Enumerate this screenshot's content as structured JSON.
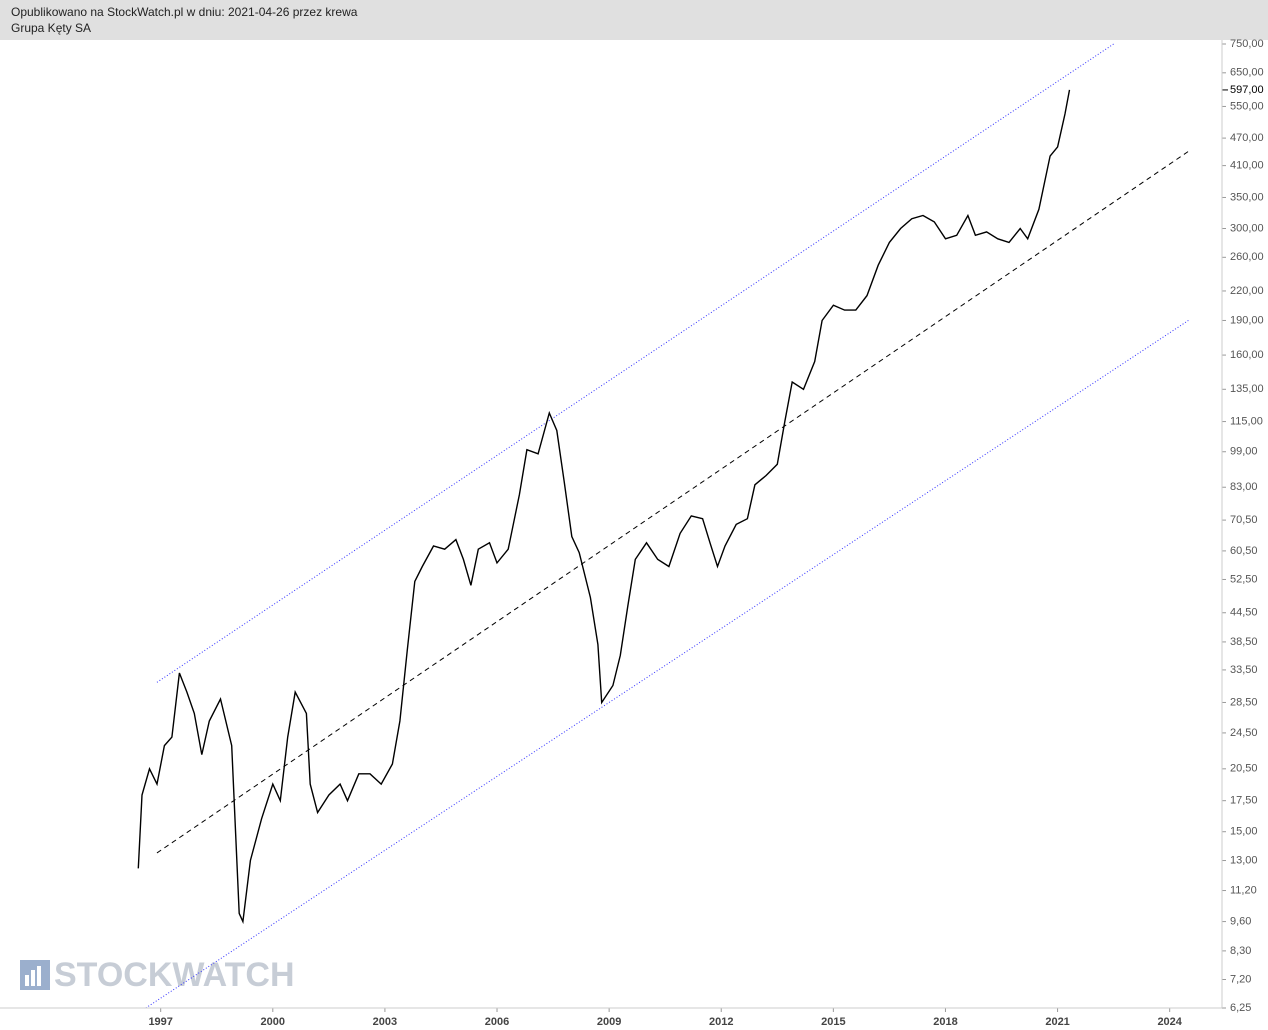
{
  "header": {
    "published": "Opublikowano na StockWatch.pl w dniu: 2021-04-26 przez krewa",
    "instrument": "Grupa Kęty SA"
  },
  "watermark": "STOCKWATCH",
  "chart_data": {
    "type": "line",
    "log_scale": true,
    "xlim": [
      1992.7,
      2025.4
    ],
    "ylim": [
      6.25,
      750
    ],
    "xticks": [
      1997,
      2000,
      2003,
      2006,
      2009,
      2012,
      2015,
      2018,
      2021,
      2024
    ],
    "yticks": [
      {
        "value": 750,
        "label": "750,00"
      },
      {
        "value": 650,
        "label": "650,00"
      },
      {
        "value": 550,
        "label": "550,00"
      },
      {
        "value": 470,
        "label": "470,00"
      },
      {
        "value": 410,
        "label": "410,00"
      },
      {
        "value": 350,
        "label": "350,00"
      },
      {
        "value": 300,
        "label": "300,00"
      },
      {
        "value": 260,
        "label": "260,00"
      },
      {
        "value": 220,
        "label": "220,00"
      },
      {
        "value": 190,
        "label": "190,00"
      },
      {
        "value": 160,
        "label": "160,00"
      },
      {
        "value": 135,
        "label": "135,00"
      },
      {
        "value": 115,
        "label": "115,00"
      },
      {
        "value": 99,
        "label": "99,00"
      },
      {
        "value": 83,
        "label": "83,00"
      },
      {
        "value": 70.5,
        "label": "70,50"
      },
      {
        "value": 60.5,
        "label": "60,50"
      },
      {
        "value": 52.5,
        "label": "52,50"
      },
      {
        "value": 44.5,
        "label": "44,50"
      },
      {
        "value": 38.5,
        "label": "38,50"
      },
      {
        "value": 33.5,
        "label": "33,50"
      },
      {
        "value": 28.5,
        "label": "28,50"
      },
      {
        "value": 24.5,
        "label": "24,50"
      },
      {
        "value": 20.5,
        "label": "20,50"
      },
      {
        "value": 17.5,
        "label": "17,50"
      },
      {
        "value": 15,
        "label": "15,00"
      },
      {
        "value": 13,
        "label": "13,00"
      },
      {
        "value": 11.2,
        "label": "11,20"
      },
      {
        "value": 9.6,
        "label": "9,60"
      },
      {
        "value": 8.3,
        "label": "8,30"
      },
      {
        "value": 7.2,
        "label": "7,20"
      },
      {
        "value": 6.25,
        "label": "6,25"
      }
    ],
    "last_price": {
      "value": 597,
      "label": "597,00"
    },
    "series": [
      {
        "color": "#000000",
        "x": [
          1996.4,
          1996.5,
          1996.7,
          1996.9,
          1997.1,
          1997.3,
          1997.5,
          1997.7,
          1997.9,
          1998.1,
          1998.3,
          1998.6,
          1998.9,
          1999.1,
          1999.2,
          1999.4,
          1999.7,
          2000.0,
          2000.2,
          2000.4,
          2000.6,
          2000.9,
          2001.0,
          2001.2,
          2001.5,
          2001.8,
          2002.0,
          2002.3,
          2002.6,
          2002.9,
          2003.2,
          2003.4,
          2003.6,
          2003.8,
          2004.0,
          2004.3,
          2004.6,
          2004.9,
          2005.1,
          2005.3,
          2005.5,
          2005.8,
          2006.0,
          2006.3,
          2006.6,
          2006.8,
          2007.1,
          2007.4,
          2007.6,
          2007.8,
          2008.0,
          2008.2,
          2008.5,
          2008.7,
          2008.8,
          2009.1,
          2009.3,
          2009.5,
          2009.7,
          2010.0,
          2010.3,
          2010.6,
          2010.9,
          2011.2,
          2011.5,
          2011.7,
          2011.9,
          2012.1,
          2012.4,
          2012.7,
          2012.9,
          2013.2,
          2013.5,
          2013.7,
          2013.9,
          2014.2,
          2014.5,
          2014.7,
          2015.0,
          2015.3,
          2015.6,
          2015.9,
          2016.2,
          2016.5,
          2016.8,
          2017.1,
          2017.4,
          2017.7,
          2018.0,
          2018.3,
          2018.6,
          2018.8,
          2019.1,
          2019.4,
          2019.7,
          2020.0,
          2020.2,
          2020.5,
          2020.8,
          2021.0,
          2021.2,
          2021.32
        ],
        "values": [
          12.5,
          18,
          20.5,
          19,
          23,
          24,
          33,
          30,
          27,
          22,
          26,
          29,
          23,
          10,
          9.6,
          13,
          16,
          19,
          17.5,
          24,
          30,
          27,
          19,
          16.5,
          18,
          19,
          17.5,
          20,
          20,
          19,
          21,
          26,
          37,
          52,
          56,
          62,
          61,
          64,
          58,
          51,
          61,
          63,
          57,
          61,
          80,
          100,
          98,
          120,
          110,
          85,
          65,
          60,
          48,
          38,
          28.5,
          31,
          36,
          46,
          58,
          63,
          58,
          56,
          66,
          72,
          71,
          63,
          56,
          62,
          69,
          71,
          84,
          88,
          93,
          115,
          140,
          135,
          155,
          190,
          205,
          200,
          200,
          215,
          250,
          280,
          300,
          315,
          320,
          310,
          285,
          290,
          320,
          290,
          295,
          285,
          280,
          300,
          285,
          330,
          430,
          450,
          530,
          597
        ]
      }
    ],
    "trend_lines": [
      {
        "color": "#3333ff",
        "style": "dotted",
        "x": [
          1996.9,
          2022.5
        ],
        "y": [
          31.5,
          750
        ]
      },
      {
        "color": "#000000",
        "style": "dashed",
        "x": [
          1996.9,
          2024.5
        ],
        "y": [
          13.5,
          440
        ]
      },
      {
        "color": "#3333ff",
        "style": "dotted",
        "x": [
          1996.6,
          2024.5
        ],
        "y": [
          6.25,
          190
        ]
      }
    ]
  }
}
